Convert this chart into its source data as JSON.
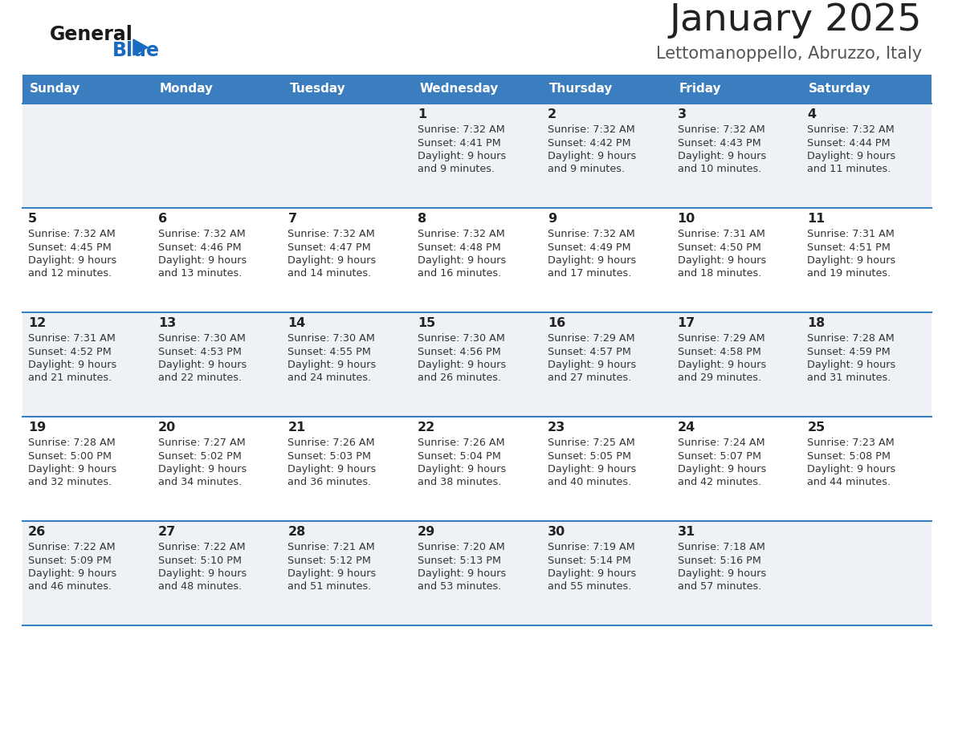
{
  "title": "January 2025",
  "subtitle": "Lettomanoppello, Abruzzo, Italy",
  "days_of_week": [
    "Sunday",
    "Monday",
    "Tuesday",
    "Wednesday",
    "Thursday",
    "Friday",
    "Saturday"
  ],
  "header_bg": "#3a7ebf",
  "header_text_color": "#ffffff",
  "cell_bg_odd": "#eef2f7",
  "cell_bg_even": "#ffffff",
  "row_line_color": "#3a7ebf",
  "text_color": "#333333",
  "day_num_color": "#222222",
  "title_color": "#222222",
  "subtitle_color": "#555555",
  "logo_general_color": "#1a1a1a",
  "logo_blue_color": "#1a6bbf",
  "calendar": [
    [
      {
        "day": null
      },
      {
        "day": null
      },
      {
        "day": null
      },
      {
        "day": 1,
        "sunrise": "7:32 AM",
        "sunset": "4:41 PM",
        "daylight": "9 hours and 9 minutes."
      },
      {
        "day": 2,
        "sunrise": "7:32 AM",
        "sunset": "4:42 PM",
        "daylight": "9 hours and 9 minutes."
      },
      {
        "day": 3,
        "sunrise": "7:32 AM",
        "sunset": "4:43 PM",
        "daylight": "9 hours and 10 minutes."
      },
      {
        "day": 4,
        "sunrise": "7:32 AM",
        "sunset": "4:44 PM",
        "daylight": "9 hours and 11 minutes."
      }
    ],
    [
      {
        "day": 5,
        "sunrise": "7:32 AM",
        "sunset": "4:45 PM",
        "daylight": "9 hours and 12 minutes."
      },
      {
        "day": 6,
        "sunrise": "7:32 AM",
        "sunset": "4:46 PM",
        "daylight": "9 hours and 13 minutes."
      },
      {
        "day": 7,
        "sunrise": "7:32 AM",
        "sunset": "4:47 PM",
        "daylight": "9 hours and 14 minutes."
      },
      {
        "day": 8,
        "sunrise": "7:32 AM",
        "sunset": "4:48 PM",
        "daylight": "9 hours and 16 minutes."
      },
      {
        "day": 9,
        "sunrise": "7:32 AM",
        "sunset": "4:49 PM",
        "daylight": "9 hours and 17 minutes."
      },
      {
        "day": 10,
        "sunrise": "7:31 AM",
        "sunset": "4:50 PM",
        "daylight": "9 hours and 18 minutes."
      },
      {
        "day": 11,
        "sunrise": "7:31 AM",
        "sunset": "4:51 PM",
        "daylight": "9 hours and 19 minutes."
      }
    ],
    [
      {
        "day": 12,
        "sunrise": "7:31 AM",
        "sunset": "4:52 PM",
        "daylight": "9 hours and 21 minutes."
      },
      {
        "day": 13,
        "sunrise": "7:30 AM",
        "sunset": "4:53 PM",
        "daylight": "9 hours and 22 minutes."
      },
      {
        "day": 14,
        "sunrise": "7:30 AM",
        "sunset": "4:55 PM",
        "daylight": "9 hours and 24 minutes."
      },
      {
        "day": 15,
        "sunrise": "7:30 AM",
        "sunset": "4:56 PM",
        "daylight": "9 hours and 26 minutes."
      },
      {
        "day": 16,
        "sunrise": "7:29 AM",
        "sunset": "4:57 PM",
        "daylight": "9 hours and 27 minutes."
      },
      {
        "day": 17,
        "sunrise": "7:29 AM",
        "sunset": "4:58 PM",
        "daylight": "9 hours and 29 minutes."
      },
      {
        "day": 18,
        "sunrise": "7:28 AM",
        "sunset": "4:59 PM",
        "daylight": "9 hours and 31 minutes."
      }
    ],
    [
      {
        "day": 19,
        "sunrise": "7:28 AM",
        "sunset": "5:00 PM",
        "daylight": "9 hours and 32 minutes."
      },
      {
        "day": 20,
        "sunrise": "7:27 AM",
        "sunset": "5:02 PM",
        "daylight": "9 hours and 34 minutes."
      },
      {
        "day": 21,
        "sunrise": "7:26 AM",
        "sunset": "5:03 PM",
        "daylight": "9 hours and 36 minutes."
      },
      {
        "day": 22,
        "sunrise": "7:26 AM",
        "sunset": "5:04 PM",
        "daylight": "9 hours and 38 minutes."
      },
      {
        "day": 23,
        "sunrise": "7:25 AM",
        "sunset": "5:05 PM",
        "daylight": "9 hours and 40 minutes."
      },
      {
        "day": 24,
        "sunrise": "7:24 AM",
        "sunset": "5:07 PM",
        "daylight": "9 hours and 42 minutes."
      },
      {
        "day": 25,
        "sunrise": "7:23 AM",
        "sunset": "5:08 PM",
        "daylight": "9 hours and 44 minutes."
      }
    ],
    [
      {
        "day": 26,
        "sunrise": "7:22 AM",
        "sunset": "5:09 PM",
        "daylight": "9 hours and 46 minutes."
      },
      {
        "day": 27,
        "sunrise": "7:22 AM",
        "sunset": "5:10 PM",
        "daylight": "9 hours and 48 minutes."
      },
      {
        "day": 28,
        "sunrise": "7:21 AM",
        "sunset": "5:12 PM",
        "daylight": "9 hours and 51 minutes."
      },
      {
        "day": 29,
        "sunrise": "7:20 AM",
        "sunset": "5:13 PM",
        "daylight": "9 hours and 53 minutes."
      },
      {
        "day": 30,
        "sunrise": "7:19 AM",
        "sunset": "5:14 PM",
        "daylight": "9 hours and 55 minutes."
      },
      {
        "day": 31,
        "sunrise": "7:18 AM",
        "sunset": "5:16 PM",
        "daylight": "9 hours and 57 minutes."
      },
      {
        "day": null
      }
    ]
  ]
}
